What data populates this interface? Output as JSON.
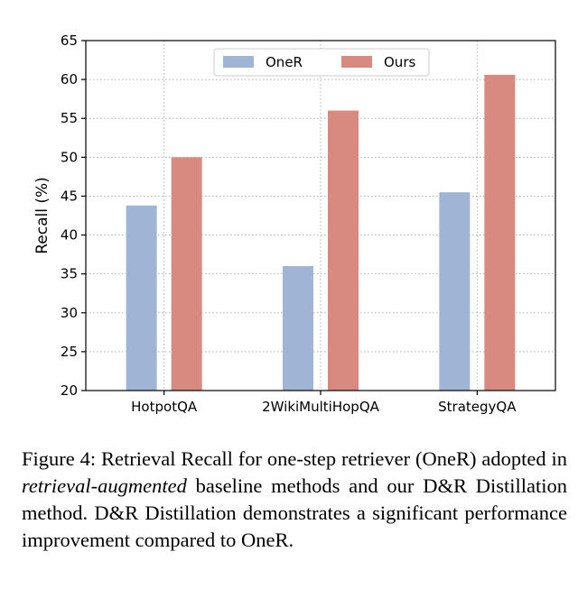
{
  "chart_data": {
    "type": "bar",
    "categories": [
      "HotpotQA",
      "2WikiMultiHopQA",
      "StrategyQA"
    ],
    "series": [
      {
        "name": "OneR",
        "values": [
          43.8,
          36.0,
          45.5
        ],
        "color": "#a0b4d6"
      },
      {
        "name": "Ours",
        "values": [
          50.0,
          56.0,
          60.6
        ],
        "color": "#d88a80"
      }
    ],
    "ylabel": "Recall (%)",
    "xlabel": "",
    "ylim": [
      20,
      65
    ],
    "yticks": [
      "20",
      "25",
      "30",
      "35",
      "40",
      "45",
      "50",
      "55",
      "60",
      "65"
    ],
    "grid": true,
    "legend_position": "top-center"
  },
  "caption": {
    "prefix": "Figure 4: Retrieval Recall for one-step retriever (OneR) adopted in ",
    "italic": "retrieval-augmented",
    "suffix": " baseline methods and our D&R Distillation method. D&R Distillation demonstrates a significant performance improvement compared to OneR."
  }
}
